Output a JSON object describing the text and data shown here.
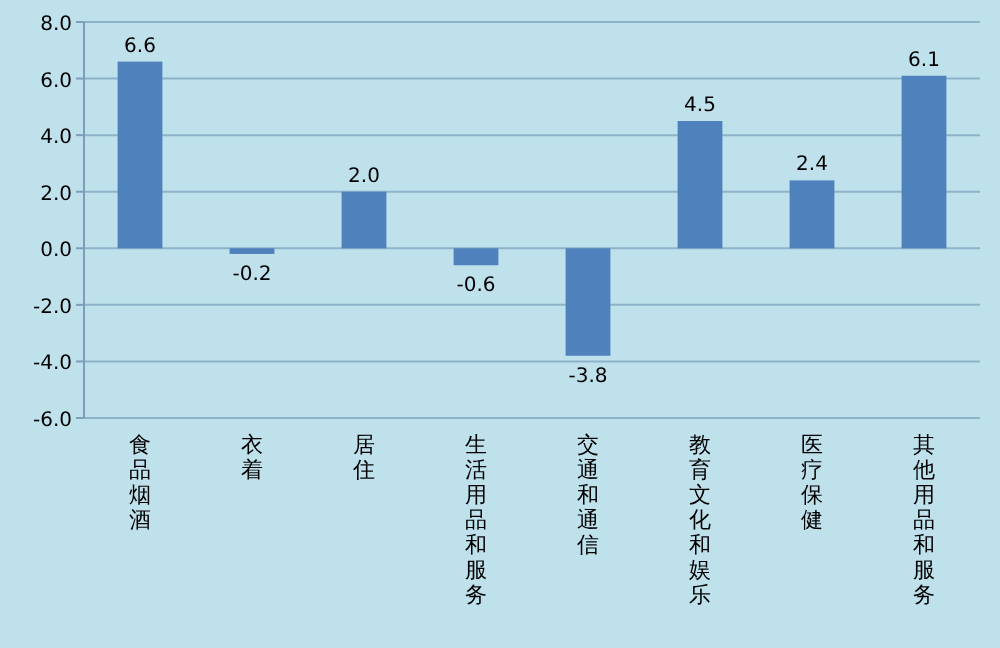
{
  "chart_data": {
    "type": "bar",
    "categories": [
      "食品烟酒",
      "衣着",
      "居住",
      "生活用品和服务",
      "交通和通信",
      "教育文化和娱乐",
      "医疗保健",
      "其他用品和服务"
    ],
    "values": [
      6.6,
      -0.2,
      2.0,
      -0.6,
      -3.8,
      4.5,
      2.4,
      6.1
    ],
    "color": "#4f81bd",
    "ylim": [
      -6,
      8
    ],
    "yticks": [
      {
        "value": -6,
        "label": "-6.0"
      },
      {
        "value": -4,
        "label": "-4.0"
      },
      {
        "value": -2,
        "label": "-2.0"
      },
      {
        "value": 0,
        "label": "0.0"
      },
      {
        "value": 2,
        "label": "2.0"
      },
      {
        "value": 4,
        "label": "4.0"
      },
      {
        "value": 6,
        "label": "6.0"
      },
      {
        "value": 8,
        "label": "8.0"
      }
    ],
    "grid": true,
    "value_labels": [
      "6.6",
      "-0.2",
      "2.0",
      "-0.6",
      "-3.8",
      "4.5",
      "2.4",
      "6.1"
    ]
  }
}
